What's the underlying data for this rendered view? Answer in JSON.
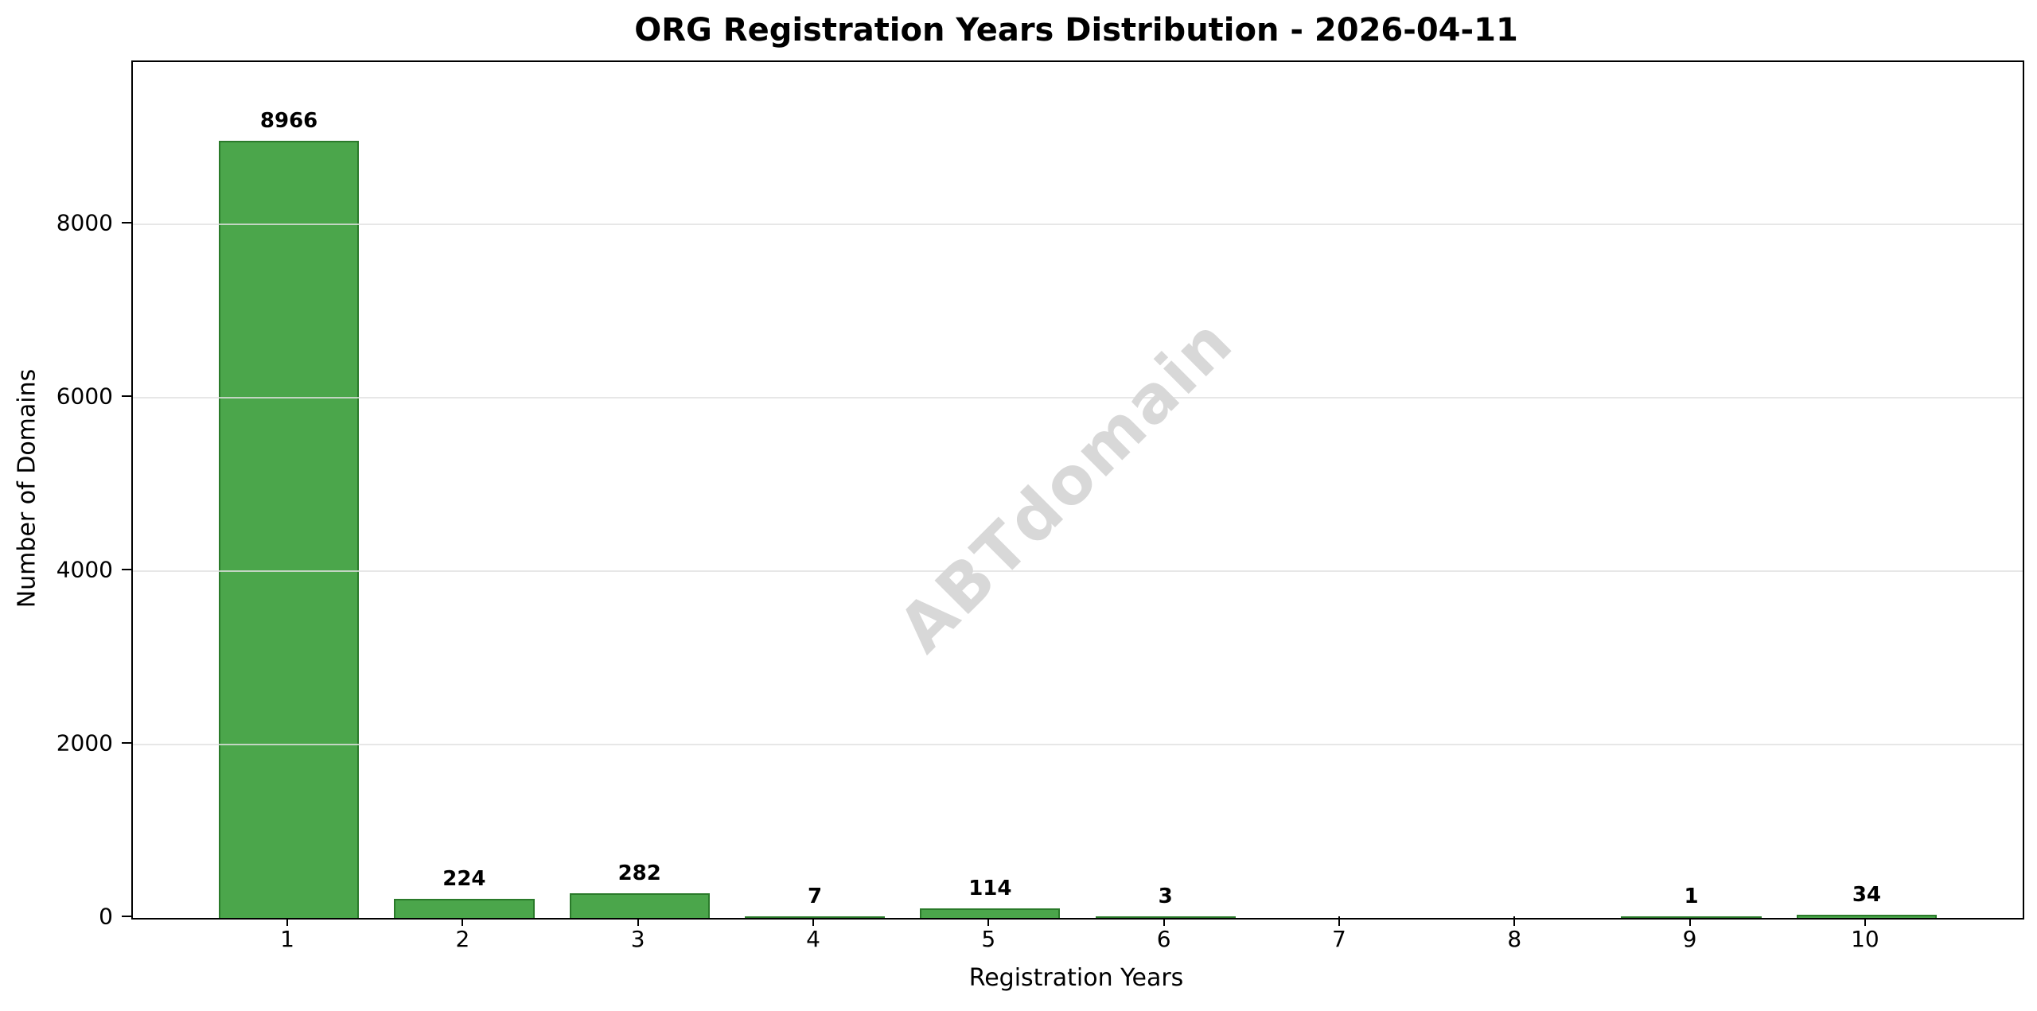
{
  "title": "ORG Registration Years Distribution - 2026-04-11",
  "watermark": "ABTdomain",
  "colors": {
    "bar_fill": "#4ba64b",
    "bar_edge": "#2a7a2a",
    "grid": "#e5e5e5",
    "spine": "#000000",
    "watermark": "#d8d8d8",
    "text": "#000000"
  },
  "chart_data": {
    "type": "bar",
    "categories": [
      "1",
      "2",
      "3",
      "4",
      "5",
      "6",
      "7",
      "8",
      "9",
      "10"
    ],
    "values": [
      8966,
      224,
      282,
      7,
      114,
      3,
      0,
      0,
      1,
      34
    ],
    "title": "ORG Registration Years Distribution - 2026-04-11",
    "xlabel": "Registration Years",
    "ylabel": "Number of Domains",
    "yticks": [
      0,
      2000,
      4000,
      6000,
      8000
    ],
    "ylim": [
      0,
      9870
    ],
    "xlim": [
      0.11,
      10.89
    ],
    "bar_width": 0.8,
    "grid": "horizontal-y",
    "legend_position": "none",
    "value_labels": "shown above non-zero bars"
  }
}
